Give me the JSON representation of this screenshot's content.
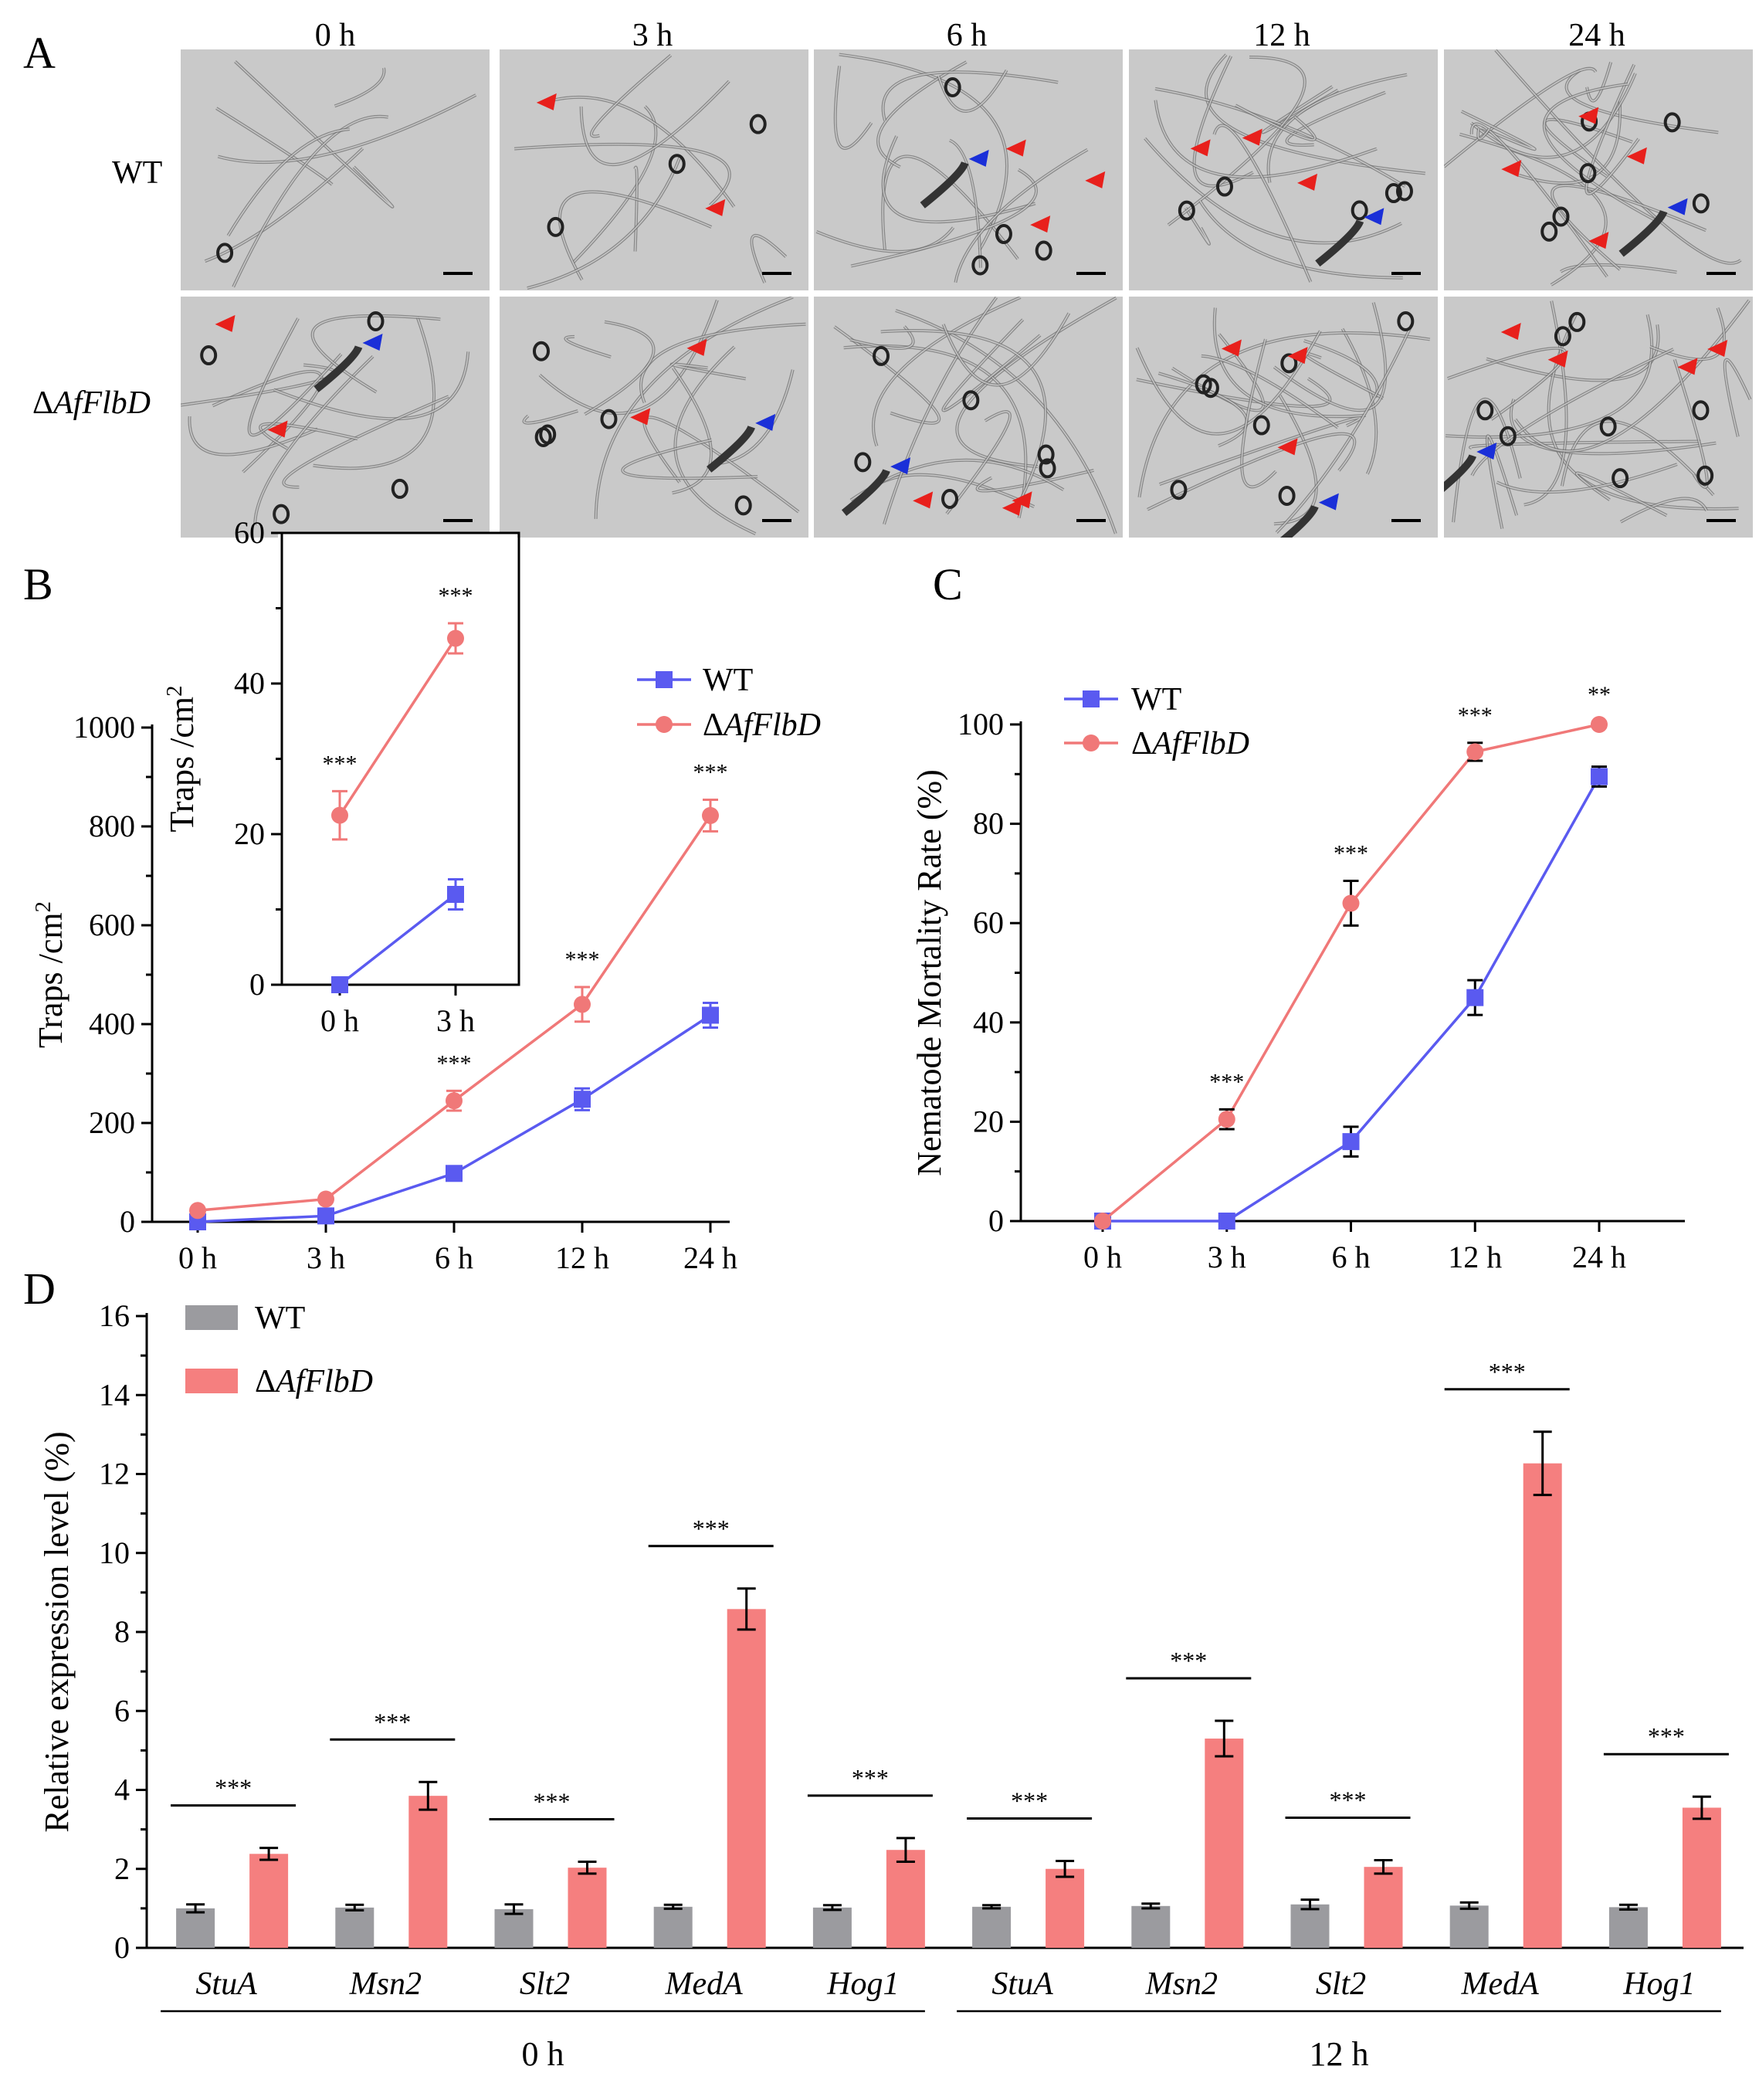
{
  "panels": {
    "a": "A",
    "b": "B",
    "c": "C",
    "d": "D"
  },
  "panel_a": {
    "columns": [
      "0 h",
      "3 h",
      "6 h",
      "12 h",
      "24 h"
    ],
    "rows": [
      {
        "label": "WT",
        "italic_part": "",
        "prefix": ""
      },
      {
        "label": "ΔAfFlbD",
        "prefix": "Δ",
        "italic_part": "AfFlbD"
      }
    ],
    "arrow_colors": {
      "trap": "#e8201c",
      "nematode": "#1a2fd8"
    }
  },
  "chart_data": [
    {
      "id": "B-main",
      "type": "line",
      "title": "",
      "xlabel": "",
      "ylabel": "Traps /cm",
      "ylabel_sup": "2",
      "categories": [
        "0 h",
        "3 h",
        "6 h",
        "12 h",
        "24 h"
      ],
      "ylim": [
        0,
        1000
      ],
      "yticks": [
        0,
        200,
        400,
        600,
        800,
        1000
      ],
      "series": [
        {
          "name": "WT",
          "color": "#5a5af0",
          "marker": "square",
          "values": [
            0,
            12,
            98,
            248,
            418
          ],
          "errors": [
            2,
            4,
            8,
            22,
            25
          ]
        },
        {
          "name": "ΔAfFlbD",
          "color": "#f07878",
          "marker": "circle",
          "values": [
            23,
            46,
            245,
            440,
            822
          ],
          "errors": [
            4,
            4,
            20,
            35,
            32
          ]
        }
      ],
      "significance": [
        "",
        "",
        "***",
        "***",
        "***"
      ],
      "legend": {
        "position": "top-right",
        "labels": [
          "WT",
          "ΔAfFlbD"
        ]
      }
    },
    {
      "id": "B-inset",
      "type": "line",
      "ylabel": "Traps /cm",
      "ylabel_sup": "2",
      "categories": [
        "0 h",
        "3 h"
      ],
      "ylim": [
        0,
        60
      ],
      "yticks": [
        0,
        20,
        40,
        60
      ],
      "series": [
        {
          "name": "WT",
          "color": "#5a5af0",
          "marker": "square",
          "values": [
            0,
            12
          ],
          "errors": [
            0.5,
            2
          ]
        },
        {
          "name": "ΔAfFlbD",
          "color": "#f07878",
          "marker": "circle",
          "values": [
            22.5,
            46
          ],
          "errors": [
            3.2,
            2
          ]
        }
      ],
      "significance": [
        "***",
        "***"
      ]
    },
    {
      "id": "C",
      "type": "line",
      "ylabel": "Nematode Mortality Rate (%)",
      "categories": [
        "0 h",
        "3 h",
        "6 h",
        "12 h",
        "24 h"
      ],
      "ylim": [
        0,
        100
      ],
      "yticks": [
        0,
        20,
        40,
        60,
        80,
        100
      ],
      "series": [
        {
          "name": "WT",
          "color": "#5a5af0",
          "marker": "square",
          "values": [
            0,
            0,
            16,
            45,
            89.5
          ],
          "errors": [
            0,
            0,
            3,
            3.5,
            2
          ]
        },
        {
          "name": "ΔAfFlbD",
          "color": "#f07878",
          "marker": "circle",
          "values": [
            0,
            20.5,
            64,
            94.5,
            100
          ],
          "errors": [
            0,
            2,
            4.5,
            1.8,
            0.5
          ]
        }
      ],
      "significance": [
        "",
        "***",
        "***",
        "***",
        "**"
      ],
      "legend": {
        "position": "top-left",
        "labels": [
          "WT",
          "ΔAfFlbD"
        ]
      }
    },
    {
      "id": "D",
      "type": "bar",
      "ylabel": "Relative expression level (%)",
      "ylim": [
        0,
        16
      ],
      "yticks": [
        0,
        2,
        4,
        6,
        8,
        10,
        12,
        14,
        16
      ],
      "categories": [
        "StuA",
        "Msn2",
        "Slt2",
        "MedA",
        "Hog1",
        "StuA",
        "Msn2",
        "Slt2",
        "MedA",
        "Hog1"
      ],
      "groups": [
        {
          "label": "0 h",
          "span": [
            0,
            4
          ]
        },
        {
          "label": "12 h",
          "span": [
            5,
            9
          ]
        }
      ],
      "series": [
        {
          "name": "WT",
          "color": "#9b9b9f",
          "values": [
            1.0,
            1.02,
            0.98,
            1.04,
            1.02,
            1.04,
            1.06,
            1.1,
            1.07,
            1.03
          ],
          "errors": [
            0.1,
            0.07,
            0.12,
            0.05,
            0.06,
            0.04,
            0.06,
            0.12,
            0.08,
            0.06
          ]
        },
        {
          "name": "ΔAfFlbD",
          "color": "#f57f7f",
          "values": [
            2.38,
            3.85,
            2.03,
            8.58,
            2.48,
            2.0,
            5.3,
            2.05,
            12.27,
            3.55
          ],
          "errors": [
            0.15,
            0.35,
            0.15,
            0.52,
            0.3,
            0.2,
            0.45,
            0.17,
            0.8,
            0.28
          ]
        }
      ],
      "significance": [
        "***",
        "***",
        "***",
        "***",
        "***",
        "***",
        "***",
        "***",
        "***",
        "***"
      ],
      "legend": {
        "position": "top-left",
        "labels": [
          "WT",
          "ΔAfFlbD"
        ]
      }
    }
  ]
}
